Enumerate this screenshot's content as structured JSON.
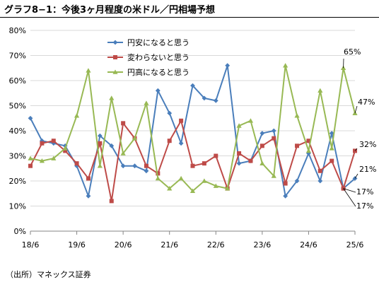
{
  "title": "グラフ8−1：今後3ヶ月程度の米ドル／円相場予想",
  "source": "（出所）マネックス証券",
  "chart_data": {
    "type": "line",
    "ylim": [
      0,
      80
    ],
    "y_ticks": [
      "0%",
      "10%",
      "20%",
      "30%",
      "40%",
      "50%",
      "60%",
      "70%",
      "80%"
    ],
    "x_ticks": [
      "18/6",
      "19/6",
      "20/6",
      "21/6",
      "22/6",
      "23/6",
      "24/6",
      "25/6"
    ],
    "grid": true,
    "legend_placement": "top-center",
    "series": [
      {
        "name": "円安になると思う",
        "color": "#4a7ebb",
        "marker": "diamond",
        "values": [
          45,
          36,
          35,
          34,
          26,
          14,
          38,
          34,
          26,
          26,
          24,
          56,
          47,
          35,
          58,
          53,
          52,
          66,
          27,
          28,
          39,
          40,
          14,
          20,
          31,
          20,
          39,
          17,
          21
        ]
      },
      {
        "name": "変わらないと思う",
        "color": "#be4b48",
        "marker": "square",
        "values": [
          26,
          35,
          36,
          32,
          27,
          21,
          35,
          12,
          43,
          37,
          26,
          23,
          36,
          44,
          26,
          27,
          30,
          17,
          31,
          28,
          34,
          37,
          19,
          34,
          36,
          24,
          28,
          17,
          32
        ]
      },
      {
        "name": "円高になると思う",
        "color": "#98b954",
        "marker": "triangle",
        "values": [
          29,
          28,
          29,
          33,
          46,
          64,
          26,
          53,
          31,
          37,
          51,
          21,
          17,
          21,
          16,
          20,
          18,
          17,
          42,
          44,
          27,
          22,
          66,
          46,
          32,
          56,
          33,
          65,
          47
        ]
      }
    ],
    "annotations": [
      "65%",
      "47%",
      "32%",
      "21%",
      "17%",
      "17%"
    ]
  }
}
